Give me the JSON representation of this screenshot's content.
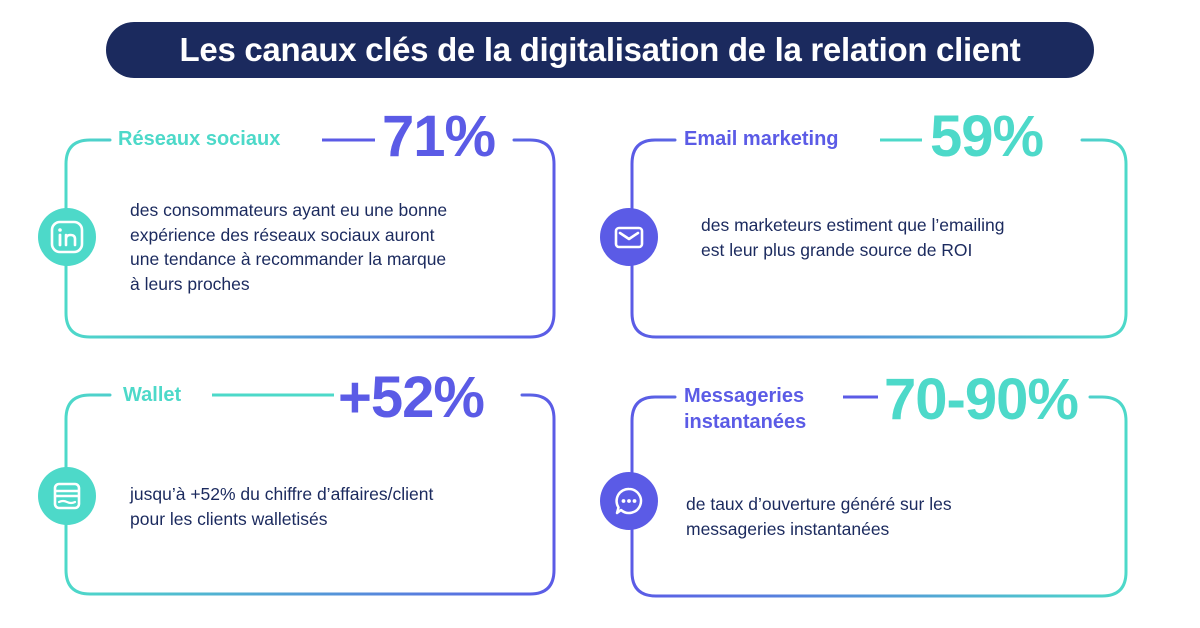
{
  "title": "Les canaux clés de la digitalisation de la relation client",
  "colors": {
    "navy": "#1b2a5e",
    "teal": "#4dd9c9",
    "purple": "#5b5be6"
  },
  "cards": [
    {
      "label": "Réseaux sociaux",
      "stat": "71%",
      "icon": "linkedin-icon",
      "description": [
        "des consommateurs ayant eu une bonne",
        "expérience des réseaux sociaux auront",
        "une tendance à recommander la marque",
        "à leurs proches"
      ]
    },
    {
      "label": "Email marketing",
      "stat": "59%",
      "icon": "envelope-icon",
      "description": [
        "des marketeurs estiment que l’emailing",
        "est leur plus grande source de ROI"
      ]
    },
    {
      "label": "Wallet",
      "stat": "+52%",
      "icon": "wallet-icon",
      "description": [
        "jusqu’à +52% du chiffre d’affaires/client",
        "pour les clients walletisés"
      ]
    },
    {
      "label_lines": [
        "Messageries",
        "instantanées"
      ],
      "stat": "70-90%",
      "icon": "chat-bubble-icon",
      "description": [
        "de taux d’ouverture généré sur les",
        "messageries instantanées"
      ]
    }
  ]
}
